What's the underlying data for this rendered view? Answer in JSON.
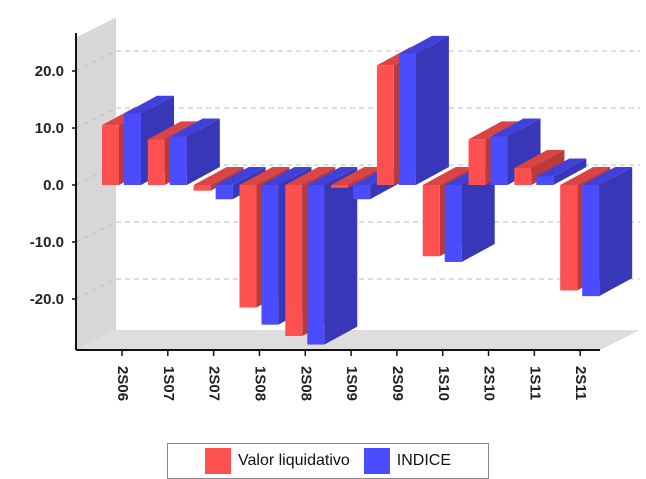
{
  "chart_data": {
    "type": "bar",
    "categories": [
      "2S06",
      "1S07",
      "2S07",
      "1S08",
      "2S08",
      "1S09",
      "2S09",
      "1S10",
      "2S10",
      "1S11",
      "2S11"
    ],
    "series": [
      {
        "name": "Valor liquidativo",
        "color": "#ff5050",
        "values": [
          10.5,
          8.0,
          -1.0,
          -21.5,
          -26.5,
          -0.5,
          21.0,
          -12.5,
          8.0,
          3.0,
          -18.5
        ]
      },
      {
        "name": "INDICE",
        "color": "#4c4cff",
        "values": [
          12.5,
          8.5,
          -2.5,
          -24.5,
          -28.0,
          -2.5,
          23.0,
          -13.5,
          8.5,
          1.5,
          -19.5
        ]
      }
    ],
    "yticks": [
      "20.0",
      "10.0",
      "0.0",
      "-10.0",
      "-20.0"
    ],
    "ylim": [
      -30,
      25
    ],
    "grid": true,
    "legend_position": "bottom"
  }
}
